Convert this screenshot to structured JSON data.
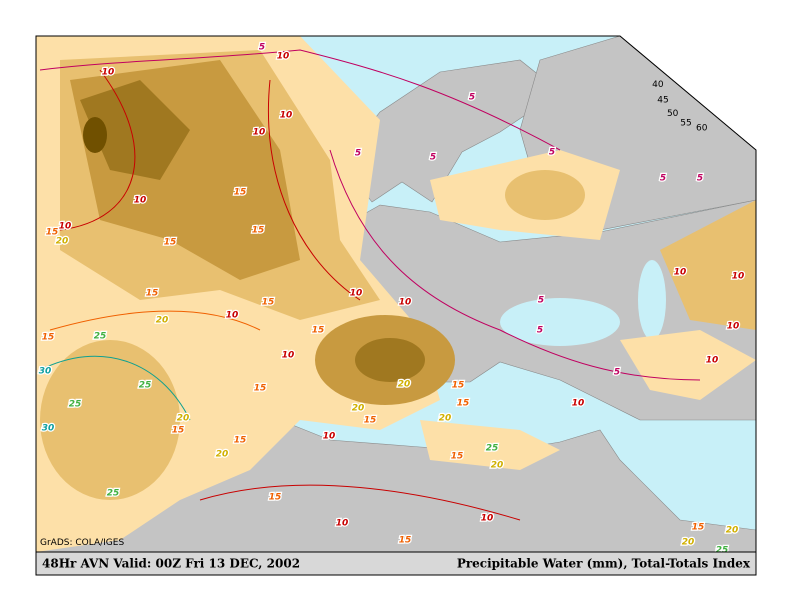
{
  "map": {
    "title": "48Hr AVN Valid: 00Z Fri 13 DEC, 2002",
    "product": "Precipitable Water (mm), Total-Totals Index",
    "credit": "GrADS: COLA/IGES",
    "legend": {
      "levels": [
        60,
        55,
        50,
        45,
        40
      ],
      "colors": [
        "#705000",
        "#a07820",
        "#c89a40",
        "#e8c070",
        "#fde0a8"
      ]
    },
    "contour_labels": [
      5,
      10,
      10,
      10,
      10,
      5,
      5,
      5,
      5,
      5,
      5,
      10,
      10,
      15,
      20,
      15,
      15,
      15,
      15,
      15,
      10,
      10,
      10,
      5,
      5,
      10,
      10,
      10,
      10,
      5,
      15,
      10,
      15,
      15,
      20,
      25,
      30,
      25,
      25,
      30,
      20,
      15,
      15,
      20,
      10,
      20,
      15,
      20,
      20,
      15,
      15,
      15,
      25,
      20,
      10,
      15,
      10,
      10,
      15,
      25,
      15,
      20,
      20,
      25
    ]
  }
}
